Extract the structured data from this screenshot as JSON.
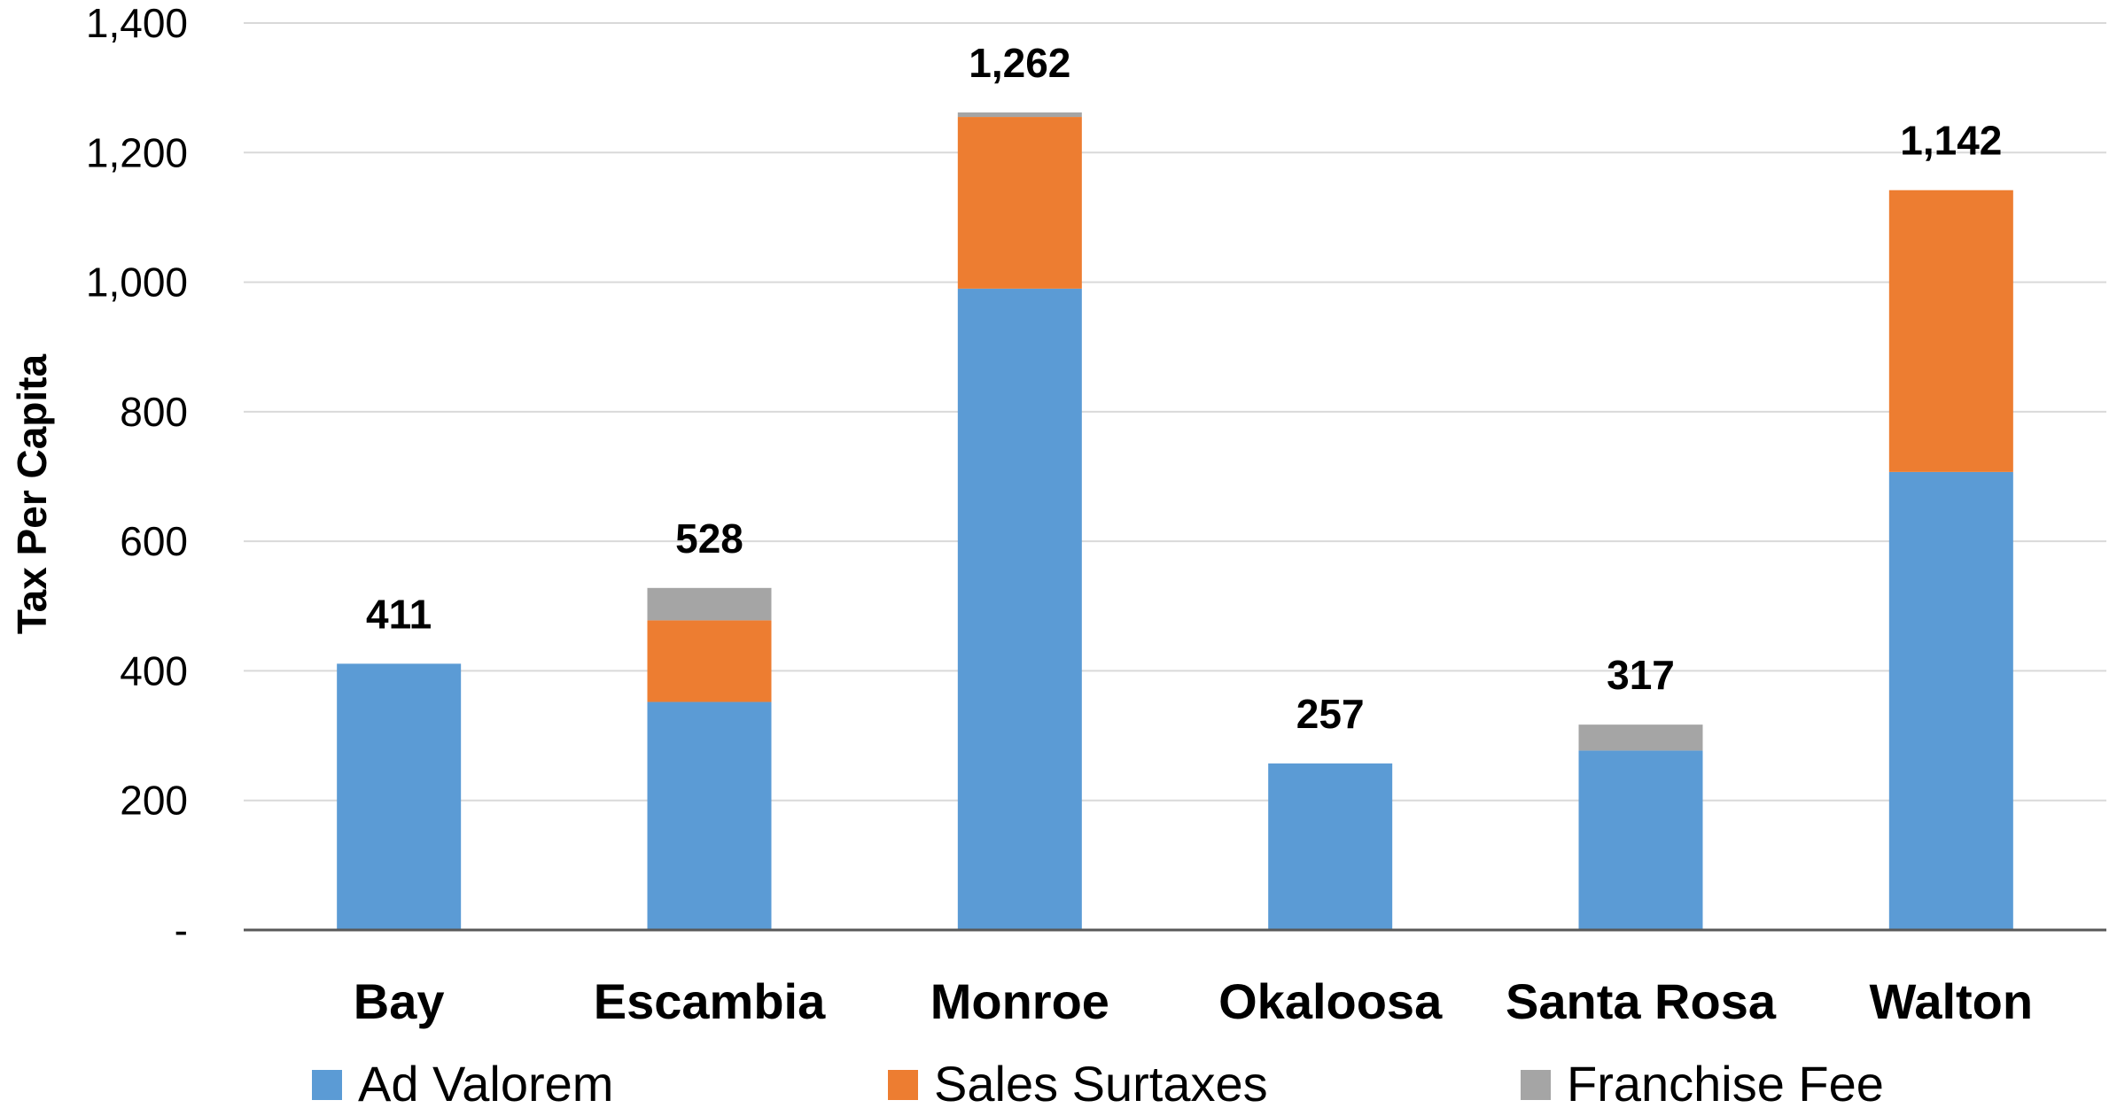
{
  "chart_data": {
    "type": "bar",
    "stacked": true,
    "categories": [
      "Bay",
      "Escambia",
      "Monroe",
      "Okaloosa",
      "Santa Rosa",
      "Walton"
    ],
    "series": [
      {
        "name": "Ad Valorem",
        "color": "#5b9bd5",
        "values": [
          411,
          352,
          990,
          257,
          277,
          707
        ]
      },
      {
        "name": "Sales Surtaxes",
        "color": "#ed7d31",
        "values": [
          0,
          126,
          265,
          0,
          0,
          435
        ]
      },
      {
        "name": "Franchise Fee",
        "color": "#a5a5a5",
        "values": [
          0,
          50,
          7,
          0,
          40,
          0
        ]
      }
    ],
    "totals": [
      411,
      528,
      1262,
      257,
      317,
      1142
    ],
    "total_labels": [
      "411",
      "528",
      "1,262",
      "257",
      "317",
      "1,142"
    ],
    "ylabel": "Tax Per Capita",
    "ylim": [
      0,
      1400
    ],
    "yticks": [
      0,
      200,
      400,
      600,
      800,
      1000,
      1200,
      1400
    ],
    "ytick_labels": [
      "-",
      "200",
      "400",
      "600",
      "800",
      "1,000",
      "1,200",
      "1,400"
    ],
    "grid": true,
    "legend_position": "bottom"
  }
}
